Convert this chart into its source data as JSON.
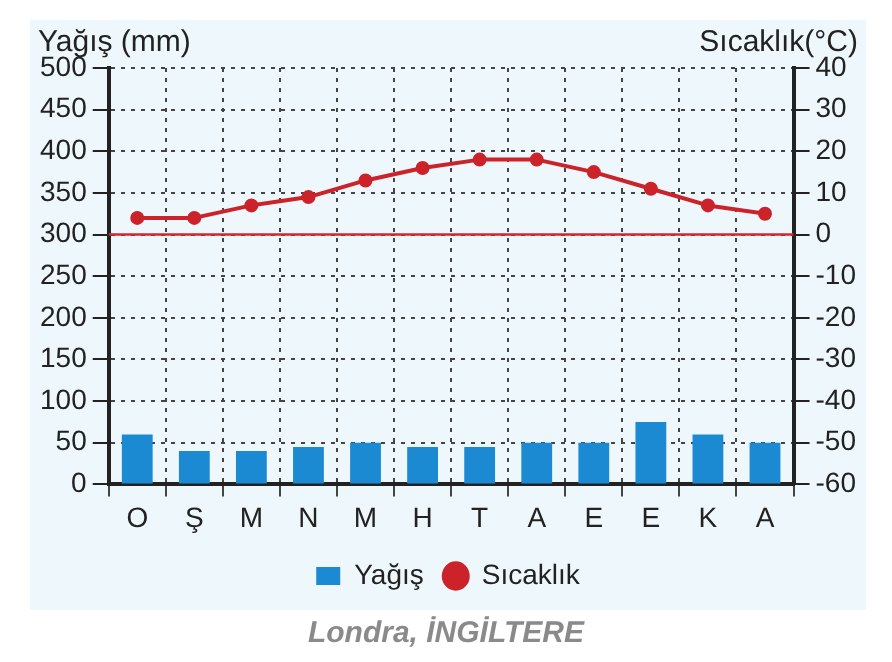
{
  "chart_data": {
    "type": "bar",
    "ylabel": "Yağış (mm)",
    "y2label": "Sıcaklık(°C)",
    "categories": [
      "O",
      "Ş",
      "M",
      "N",
      "M",
      "H",
      "T",
      "A",
      "E",
      "E",
      "K",
      "A"
    ],
    "series": [
      {
        "name": "Yağış",
        "color": "#1b8ad3",
        "values": [
          60,
          40,
          40,
          45,
          50,
          45,
          45,
          50,
          50,
          75,
          60,
          50
        ]
      },
      {
        "name": "Sıcaklık",
        "type": "line",
        "axis": "y2",
        "color": "#cc2229",
        "marker": "circle",
        "values": [
          4,
          4,
          7,
          9,
          13,
          16,
          18,
          18,
          15,
          11,
          7,
          5
        ]
      }
    ],
    "ylim": [
      0,
      500
    ],
    "yticks": [
      0,
      50,
      100,
      150,
      200,
      250,
      300,
      350,
      400,
      450,
      500
    ],
    "y2lim": [
      -60,
      40
    ],
    "y2ticks": [
      -60,
      -50,
      -40,
      -30,
      -20,
      -10,
      0,
      10,
      20,
      30,
      40
    ],
    "ref_lines": [
      {
        "axis": "y2",
        "value": 0,
        "color": "#d9262a"
      }
    ],
    "grid": true,
    "legend": "bottom",
    "annotations": [
      "Londra, İNGİLTERE"
    ]
  }
}
